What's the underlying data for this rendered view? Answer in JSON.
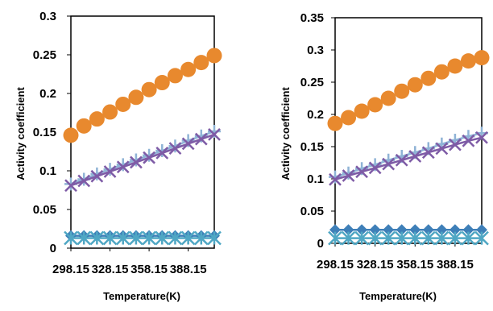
{
  "chart_data": [
    {
      "type": "scatter",
      "xlabel": "Temperature(K)",
      "ylabel": "Activity coefficient",
      "ylim": [
        0,
        0.3
      ],
      "ytick_values": [
        0,
        0.05,
        0.1,
        0.15,
        0.2,
        0.25,
        0.3
      ],
      "ytick_labels": [
        "0",
        "0.05",
        "0.1",
        "0.15",
        "0.2",
        "0.25",
        "0.3"
      ],
      "xtick_labels": [
        "298.15",
        "328.15",
        "358.15",
        "388.15"
      ],
      "x": [
        298.15,
        308.15,
        318.15,
        328.15,
        338.15,
        348.15,
        358.15,
        368.15,
        378.15,
        388.15,
        398.15,
        408.15
      ],
      "grid": false,
      "legend": "none",
      "series": [
        {
          "marker": "circle",
          "color": "#E8892E",
          "values": [
            0.146,
            0.158,
            0.167,
            0.176,
            0.186,
            0.195,
            0.205,
            0.214,
            0.223,
            0.231,
            0.24,
            0.249
          ]
        },
        {
          "marker": "plus",
          "color": "#8FB3D6",
          "values": [
            0.083,
            0.089,
            0.096,
            0.102,
            0.108,
            0.114,
            0.12,
            0.126,
            0.132,
            0.139,
            0.145,
            0.151
          ]
        },
        {
          "marker": "x",
          "color": "#7E5BA6",
          "values": [
            0.081,
            0.087,
            0.093,
            0.099,
            0.105,
            0.111,
            0.117,
            0.123,
            0.129,
            0.135,
            0.141,
            0.147
          ]
        },
        {
          "marker": "diamond",
          "color": "#3E7FB8",
          "values": [
            0.016,
            0.016,
            0.016,
            0.016,
            0.016,
            0.016,
            0.016,
            0.016,
            0.016,
            0.016,
            0.016,
            0.016
          ]
        },
        {
          "marker": "asterisk",
          "color": "#4FA7C4",
          "values": [
            0.013,
            0.013,
            0.013,
            0.013,
            0.013,
            0.013,
            0.013,
            0.013,
            0.013,
            0.013,
            0.013,
            0.013
          ]
        }
      ]
    },
    {
      "type": "scatter",
      "xlabel": "Temperature(K)",
      "ylabel": "Activity coefficient",
      "ylim": [
        0,
        0.35
      ],
      "ytick_values": [
        0,
        0.05,
        0.1,
        0.15,
        0.2,
        0.25,
        0.3,
        0.35
      ],
      "ytick_labels": [
        "0",
        "0.05",
        "0.1",
        "0.15",
        "0.2",
        "0.25",
        "0.3",
        "0.35"
      ],
      "xtick_labels": [
        "298.15",
        "328.15",
        "358.15",
        "388.15"
      ],
      "x": [
        298.15,
        308.15,
        318.15,
        328.15,
        338.15,
        348.15,
        358.15,
        368.15,
        378.15,
        388.15,
        398.15,
        408.15
      ],
      "grid": false,
      "legend": "none",
      "series": [
        {
          "marker": "circle",
          "color": "#E8892E",
          "values": [
            0.186,
            0.195,
            0.205,
            0.215,
            0.225,
            0.236,
            0.246,
            0.256,
            0.266,
            0.275,
            0.283,
            0.288
          ]
        },
        {
          "marker": "plus",
          "color": "#8FB3D6",
          "values": [
            0.103,
            0.109,
            0.116,
            0.122,
            0.129,
            0.135,
            0.141,
            0.147,
            0.154,
            0.16,
            0.166,
            0.171
          ]
        },
        {
          "marker": "x",
          "color": "#7E5BA6",
          "values": [
            0.099,
            0.105,
            0.111,
            0.117,
            0.123,
            0.129,
            0.135,
            0.141,
            0.147,
            0.153,
            0.159,
            0.164
          ]
        },
        {
          "marker": "diamond",
          "color": "#3E7FB8",
          "values": [
            0.021,
            0.021,
            0.021,
            0.021,
            0.021,
            0.021,
            0.021,
            0.021,
            0.021,
            0.021,
            0.021,
            0.021
          ]
        },
        {
          "marker": "asterisk",
          "color": "#4FA7C4",
          "values": [
            0.008,
            0.008,
            0.008,
            0.008,
            0.008,
            0.008,
            0.008,
            0.008,
            0.008,
            0.008,
            0.008,
            0.008
          ]
        }
      ]
    }
  ]
}
